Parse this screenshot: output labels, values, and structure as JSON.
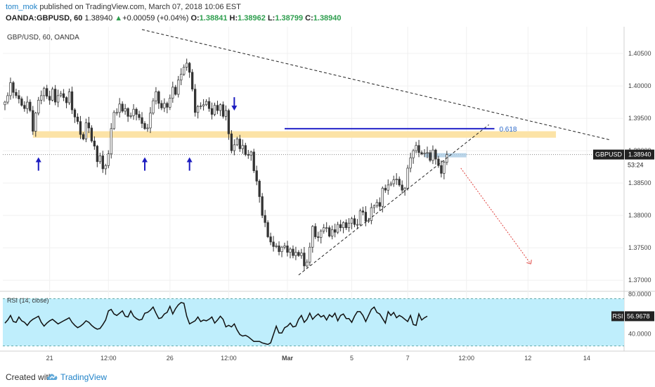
{
  "header": {
    "user": "tom_mok",
    "published": "published on TradingView.com, March 07, 2018 10:06 EST",
    "symbol_line": "OANDA:GBPUSD, 60",
    "price": "1.38940",
    "change_arrow": "▲",
    "change": "+0.00059 (+0.04%)",
    "o_label": "O:",
    "o": "1.38841",
    "h_label": "H:",
    "h": "1.38962",
    "l_label": "L:",
    "l": "1.38799",
    "c_label": "C:",
    "c": "1.38940"
  },
  "footer": {
    "created_with": "Created with",
    "brand": "TradingView",
    "logo_icon": "tradingview-cloud-icon"
  },
  "chart_data": {
    "type": "candlestick",
    "title": "GBP/USD, 60, OANDA",
    "y_ticks": [
      "1.40500",
      "1.40000",
      "1.39500",
      "1.39000",
      "1.38500",
      "1.38000",
      "1.37500",
      "1.37000"
    ],
    "x_ticks": [
      "21",
      "12:00",
      "26",
      "12:00",
      "Mar",
      "5",
      "7",
      "12:00",
      "12",
      "14"
    ],
    "x_tick_index": [
      16,
      37,
      59,
      80,
      101,
      124,
      144,
      165,
      187,
      208
    ],
    "ylim": [
      1.3685,
      1.4087
    ],
    "price_label": "GBPUSD",
    "last_price": 1.3894,
    "countdown": "53:24",
    "fib_label": "0.618",
    "fib_level": 1.3934,
    "support_zone": [
      1.392,
      1.393
    ],
    "trendline_descending": [
      [
        49,
        1.4087
      ],
      [
        216,
        1.3917
      ]
    ],
    "trendline_ascending": [
      [
        105,
        1.3708
      ],
      [
        173,
        1.394
      ]
    ],
    "projection_arrow": [
      [
        163,
        1.3873
      ],
      [
        188,
        1.3725
      ]
    ],
    "marker_up_arrows": [
      [
        12,
        1.3893
      ],
      [
        50,
        1.3893
      ],
      [
        66,
        1.3893
      ]
    ],
    "marker_down_arrow": [
      82,
      1.3963
    ],
    "close_series": [
      1.3975,
      1.3985,
      1.4005,
      1.399,
      1.3985,
      1.398,
      1.397,
      1.3965,
      1.3975,
      1.3962,
      1.393,
      1.3958,
      1.3978,
      1.3985,
      1.3996,
      1.3984,
      1.3978,
      1.3995,
      1.3975,
      1.3985,
      1.3988,
      1.3982,
      1.3974,
      1.3991,
      1.3963,
      1.3952,
      1.3945,
      1.3925,
      1.3918,
      1.3943,
      1.3935,
      1.3915,
      1.3907,
      1.3883,
      1.3892,
      1.3872,
      1.3877,
      1.3895,
      1.3934,
      1.3959,
      1.3959,
      1.3972,
      1.3961,
      1.3965,
      1.3953,
      1.3954,
      1.3964,
      1.3956,
      1.3951,
      1.3942,
      1.3934,
      1.3935,
      1.3958,
      1.3977,
      1.3991,
      1.3973,
      1.3966,
      1.3973,
      1.3967,
      1.3981,
      1.3998,
      1.3987,
      1.4009,
      1.4018,
      1.4029,
      1.4035,
      1.4021,
      1.3995,
      1.3959,
      1.3968,
      1.3969,
      1.3971,
      1.3976,
      1.3965,
      1.3956,
      1.397,
      1.3962,
      1.3971,
      1.3953,
      1.3962,
      1.3926,
      1.39,
      1.3909,
      1.3918,
      1.3903,
      1.3908,
      1.3894,
      1.3893,
      1.3898,
      1.3869,
      1.3853,
      1.3829,
      1.38,
      1.3789,
      1.3767,
      1.3759,
      1.3752,
      1.3753,
      1.3744,
      1.3751,
      1.3753,
      1.3743,
      1.3748,
      1.3738,
      1.3743,
      1.3738,
      1.3742,
      1.3722,
      1.3728,
      1.3751,
      1.3783,
      1.3767,
      1.3766,
      1.3776,
      1.3781,
      1.3781,
      1.3768,
      1.3778,
      1.3774,
      1.3786,
      1.3781,
      1.3789,
      1.3781,
      1.3788,
      1.3795,
      1.3786,
      1.3786,
      1.3807,
      1.3805,
      1.3791,
      1.3792,
      1.3812,
      1.3815,
      1.382,
      1.3814,
      1.3842,
      1.3839,
      1.3847,
      1.3849,
      1.3855,
      1.3856,
      1.3847,
      1.3839,
      1.3842,
      1.3873,
      1.3889,
      1.39,
      1.3908,
      1.3897,
      1.3895,
      1.3896,
      1.3897,
      1.3885,
      1.3901,
      1.3887,
      1.3877,
      1.3865,
      1.3882,
      1.3894
    ],
    "rsi": {
      "label": "RSI (14, close)",
      "value": "56.9678",
      "tag": "RSI",
      "ticks": [
        "80.0000",
        "40.0000"
      ],
      "ylim": [
        14,
        86
      ],
      "band": [
        30,
        70
      ],
      "values": [
        48,
        52,
        58,
        50,
        49,
        56,
        51,
        49,
        45,
        50,
        53,
        55,
        57,
        49,
        44,
        48,
        51,
        53,
        50,
        47,
        49,
        51,
        53,
        55,
        49,
        45,
        42,
        44,
        47,
        51,
        49,
        45,
        42,
        40,
        41,
        46,
        52,
        64,
        66,
        60,
        58,
        61,
        64,
        57,
        56,
        64,
        57,
        54,
        52,
        53,
        61,
        62,
        65,
        69,
        61,
        54,
        55,
        60,
        62,
        70,
        60,
        67,
        72,
        75,
        74,
        57,
        47,
        49,
        51,
        56,
        50,
        52,
        51,
        53,
        56,
        48,
        52,
        57,
        53,
        43,
        45,
        43,
        47,
        39,
        33,
        31,
        32,
        30,
        27,
        24,
        24,
        24,
        22,
        21,
        20,
        22,
        33,
        44,
        35,
        35,
        42,
        44,
        48,
        43,
        44,
        53,
        58,
        49,
        53,
        61,
        53,
        57,
        60,
        56,
        58,
        52,
        59,
        56,
        61,
        51,
        58,
        60,
        54,
        54,
        49,
        57,
        63,
        63,
        58,
        50,
        58,
        66,
        69,
        62,
        60,
        54,
        48,
        63,
        58,
        62,
        55,
        58,
        56,
        53,
        50,
        58,
        46,
        45,
        60,
        52,
        55,
        57
      ]
    }
  }
}
